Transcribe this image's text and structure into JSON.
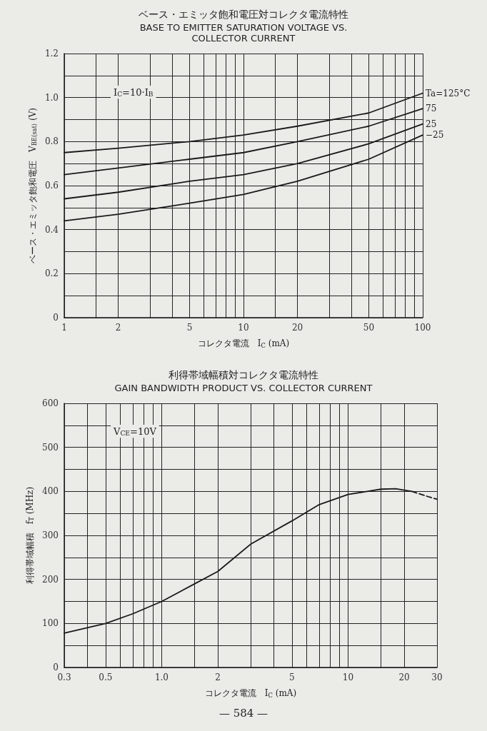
{
  "chart_data": [
    {
      "type": "line",
      "title": "ベース・エミッタ飽和電圧対コレクタ電流特性",
      "subtitle": "BASE TO EMITTER SATURATION VOLTAGE VS.\nCOLLECTOR CURRENT",
      "xlabel": "コレクタ電流　I$_{C}$ (mA)",
      "ylabel": "ベース・エミッタ飽和電圧　V$_{BE(sat)}$ (V)",
      "annotations": [
        "I$_{C}$=10·I$_{B}$"
      ],
      "log": "x",
      "grid": true,
      "marker": "none",
      "line_style": "solid",
      "xlim": [
        1,
        100
      ],
      "xticks": [
        1,
        {
          "value": 1.5,
          "label": null
        },
        2,
        {
          "value": 3,
          "label": null
        },
        {
          "value": 4,
          "label": null
        },
        5,
        {
          "value": 6,
          "label": null
        },
        {
          "value": 7,
          "label": null
        },
        {
          "value": 8,
          "label": null
        },
        {
          "value": 9,
          "label": null
        },
        10,
        {
          "value": 15,
          "label": null
        },
        20,
        {
          "value": 30,
          "label": null
        },
        {
          "value": 40,
          "label": null
        },
        50,
        {
          "value": 60,
          "label": null
        },
        {
          "value": 70,
          "label": null
        },
        {
          "value": 80,
          "label": null
        },
        {
          "value": 90,
          "label": null
        },
        100
      ],
      "ylim": [
        0,
        1.2
      ],
      "yticks": [
        0,
        {
          "value": 0.1,
          "label": null
        },
        0.2,
        {
          "value": 0.3,
          "label": null
        },
        0.4,
        {
          "value": 0.5,
          "label": null
        },
        0.6,
        {
          "value": 0.7,
          "label": null
        },
        0.8,
        {
          "value": 0.9,
          "label": null
        },
        {
          "value": 1,
          "label": "1.0"
        },
        {
          "value": 1.1,
          "label": null
        },
        1.2
      ],
      "x": [
        1,
        2,
        5,
        10,
        20,
        50,
        100
      ],
      "series": [
        {
          "name": "Ta=125°C",
          "color": "#1a1a1a",
          "values": [
            0.75,
            0.77,
            0.8,
            0.83,
            0.87,
            0.93,
            1.02
          ]
        },
        {
          "name": "75",
          "color": "#1a1a1a",
          "values": [
            0.65,
            0.68,
            0.72,
            0.75,
            0.8,
            0.87,
            0.95
          ]
        },
        {
          "name": "25",
          "color": "#1a1a1a",
          "values": [
            0.54,
            0.57,
            0.62,
            0.65,
            0.7,
            0.79,
            0.88
          ]
        },
        {
          "name": "−25",
          "color": "#1a1a1a",
          "values": [
            0.44,
            0.47,
            0.52,
            0.56,
            0.62,
            0.72,
            0.83
          ]
        }
      ]
    },
    {
      "type": "line",
      "title": "利得帯域幅積対コレクタ電流特性",
      "subtitle": "GAIN BANDWIDTH PRODUCT VS. COLLECTOR CURRENT",
      "xlabel": "コレクタ電流　I$_{C}$ (mA)",
      "ylabel": "利得帯域幅積　f$_{T}$ (MHz)",
      "annotations": [
        "V$_{CE}$=10V",
        "— 584 —"
      ],
      "log": "x",
      "grid": true,
      "marker": "none",
      "xlim": [
        0.3,
        30
      ],
      "xticks": [
        0.3,
        {
          "value": 0.4,
          "label": null
        },
        0.5,
        {
          "value": 0.6,
          "label": null
        },
        {
          "value": 0.7,
          "label": null
        },
        {
          "value": 0.8,
          "label": null
        },
        {
          "value": 0.9,
          "label": null
        },
        {
          "value": 1,
          "label": "1.0"
        },
        {
          "value": 1.5,
          "label": null
        },
        2,
        {
          "value": 3,
          "label": null
        },
        {
          "value": 4,
          "label": null
        },
        5,
        {
          "value": 6,
          "label": null
        },
        {
          "value": 7,
          "label": null
        },
        {
          "value": 8,
          "label": null
        },
        {
          "value": 9,
          "label": null
        },
        10,
        {
          "value": 15,
          "label": null
        },
        20,
        30
      ],
      "ylim": [
        0,
        600
      ],
      "yticks": [
        0,
        {
          "value": 50,
          "label": null
        },
        100,
        {
          "value": 150,
          "label": null
        },
        200,
        {
          "value": 250,
          "label": null
        },
        300,
        {
          "value": 350,
          "label": null
        },
        400,
        {
          "value": 450,
          "label": null
        },
        500,
        {
          "value": 550,
          "label": null
        },
        600
      ],
      "series": [
        {
          "color": "#1a1a1a",
          "line_style": "solid",
          "x": [
            0.3,
            0.5,
            0.7,
            1,
            1.5,
            2,
            3,
            5,
            7,
            10,
            15,
            18,
            22
          ],
          "values": [
            78,
            100,
            122,
            150,
            190,
            218,
            280,
            333,
            370,
            393,
            405,
            406,
            400
          ]
        },
        {
          "color": "#1a1a1a",
          "line_style": "dashed",
          "x": [
            22,
            26,
            30
          ],
          "values": [
            400,
            390,
            382
          ]
        }
      ]
    }
  ]
}
